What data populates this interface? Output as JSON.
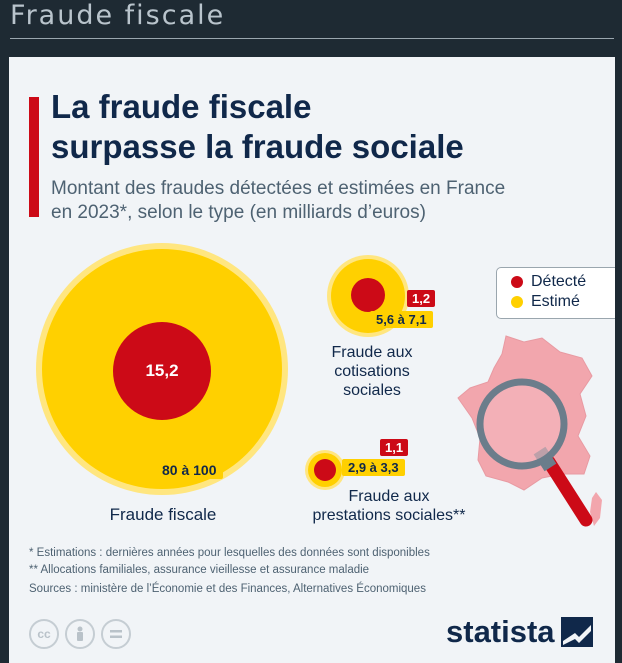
{
  "window": {
    "title": "Fraude fiscale"
  },
  "headline": {
    "line1": "La fraude fiscale",
    "line2": "surpasse la fraude sociale"
  },
  "subtitle": {
    "line1": "Montant des fraudes détectées et estimées en France",
    "line2": "en 2023*, selon le type (en milliards d’euros)"
  },
  "legend": {
    "detected": "Détecté",
    "estimated": "Estimé"
  },
  "colors": {
    "detected": "#cc0a17",
    "estimated": "#ffd000",
    "navy": "#10284a",
    "background": "#1e2a33"
  },
  "chart_data": {
    "type": "bubble",
    "categories": [
      {
        "name": "Fraude fiscale",
        "detected": 15.2,
        "detected_label": "15,2",
        "estimated_range": [
          80,
          100
        ],
        "estimated_label": "80 à 100"
      },
      {
        "name": "Fraude aux cotisations sociales",
        "name_lines": [
          "Fraude aux",
          "cotisations",
          "sociales"
        ],
        "detected": 1.2,
        "detected_label": "1,2",
        "estimated_range": [
          5.6,
          7.1
        ],
        "estimated_label": "5,6 à 7,1"
      },
      {
        "name": "Fraude aux prestations sociales**",
        "name_lines": [
          "Fraude aux",
          "prestations sociales**"
        ],
        "detected": 1.1,
        "detected_label": "1,1",
        "estimated_range": [
          2.9,
          3.3
        ],
        "estimated_label": "2,9 à 3,3"
      }
    ]
  },
  "footnotes": {
    "f1": "*   Estimations : dernières années pour lesquelles des données sont disponibles",
    "f2": "** Allocations familiales, assurance vieillesse et assurance maladie",
    "sources": "Sources : ministère de l’Économie et des Finances, Alternatives Économiques"
  },
  "icons": {
    "cc": "cc-icon",
    "by": "attribution-icon",
    "nd": "no-derivatives-icon",
    "brand": "statista-logo-icon"
  },
  "brand": {
    "name": "statista"
  }
}
